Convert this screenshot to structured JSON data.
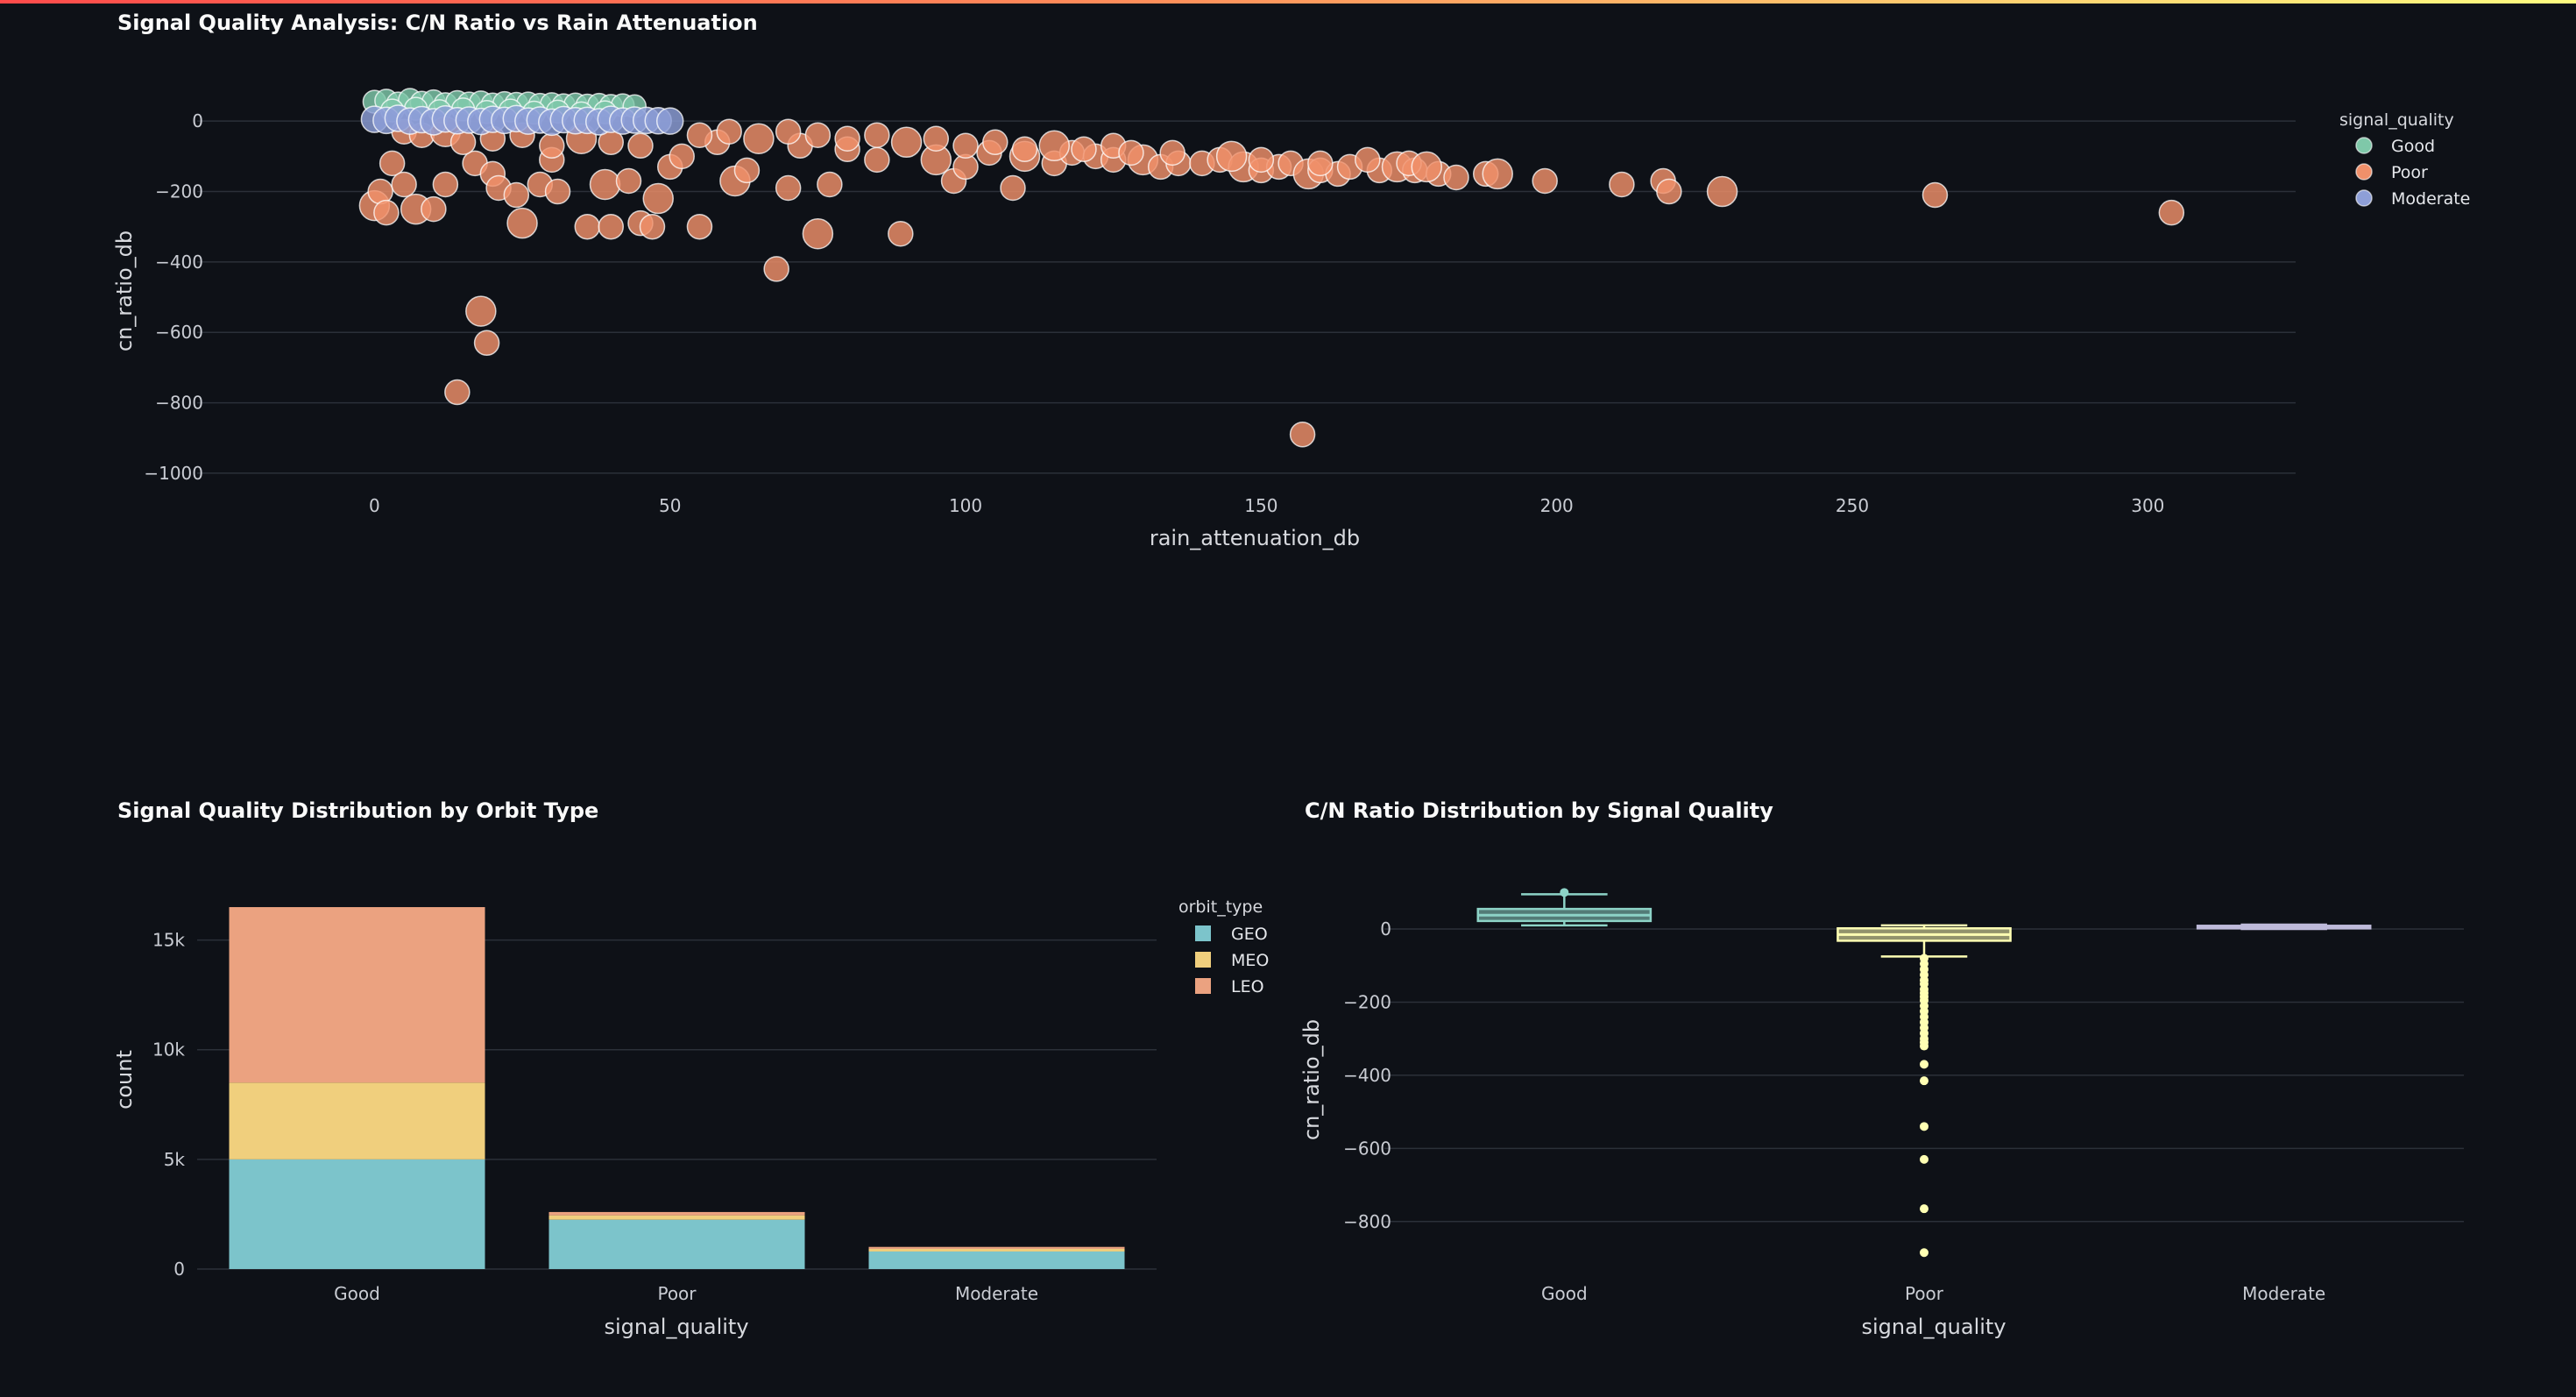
{
  "chart_data": [
    {
      "id": "scatter",
      "type": "scatter",
      "title": "Signal Quality Analysis: C/N Ratio vs Rain Attenuation",
      "xlabel": "rain_attenuation_db",
      "ylabel": "cn_ratio_db",
      "xlim": [
        -30,
        325
      ],
      "ylim": [
        -1050,
        95
      ],
      "xticks": [
        0,
        50,
        100,
        150,
        200,
        250,
        300
      ],
      "yticks": [
        0,
        -200,
        -400,
        -600,
        -800,
        -1000
      ],
      "grid": "horizontal",
      "legend": {
        "title": "signal_quality",
        "placement": "top-right"
      },
      "series": [
        {
          "name": "Good",
          "color": "#7fc8a9",
          "points": [
            [
              0,
              55
            ],
            [
              2,
              58
            ],
            [
              4,
              50
            ],
            [
              6,
              60
            ],
            [
              8,
              52
            ],
            [
              10,
              56
            ],
            [
              12,
              48
            ],
            [
              14,
              54
            ],
            [
              16,
              50
            ],
            [
              18,
              53
            ],
            [
              20,
              47
            ],
            [
              22,
              51
            ],
            [
              24,
              49
            ],
            [
              26,
              50
            ],
            [
              28,
              46
            ],
            [
              30,
              48
            ],
            [
              32,
              45
            ],
            [
              34,
              47
            ],
            [
              36,
              44
            ],
            [
              38,
              46
            ],
            [
              40,
              43
            ],
            [
              42,
              45
            ],
            [
              44,
              42
            ],
            [
              3,
              30
            ],
            [
              7,
              35
            ],
            [
              11,
              28
            ],
            [
              15,
              33
            ],
            [
              19,
              26
            ],
            [
              23,
              30
            ],
            [
              27,
              24
            ],
            [
              31,
              27
            ],
            [
              35,
              22
            ],
            [
              39,
              25
            ]
          ]
        },
        {
          "name": "Poor",
          "color": "#f0906a",
          "points": [
            [
              0,
              -240
            ],
            [
              1,
              -200
            ],
            [
              2,
              -260
            ],
            [
              3,
              -120
            ],
            [
              5,
              -180
            ],
            [
              7,
              -250
            ],
            [
              10,
              -250
            ],
            [
              12,
              -180
            ],
            [
              14,
              -770
            ],
            [
              17,
              -120
            ],
            [
              18,
              -540
            ],
            [
              19,
              -630
            ],
            [
              20,
              -150
            ],
            [
              21,
              -190
            ],
            [
              24,
              -210
            ],
            [
              25,
              -290
            ],
            [
              28,
              -180
            ],
            [
              30,
              -110
            ],
            [
              31,
              -200
            ],
            [
              36,
              -300
            ],
            [
              39,
              -180
            ],
            [
              40,
              -300
            ],
            [
              43,
              -170
            ],
            [
              45,
              -290
            ],
            [
              47,
              -300
            ],
            [
              48,
              -220
            ],
            [
              50,
              -130
            ],
            [
              52,
              -100
            ],
            [
              55,
              -300
            ],
            [
              58,
              -60
            ],
            [
              61,
              -170
            ],
            [
              63,
              -140
            ],
            [
              68,
              -420
            ],
            [
              70,
              -190
            ],
            [
              72,
              -70
            ],
            [
              75,
              -320
            ],
            [
              77,
              -180
            ],
            [
              80,
              -80
            ],
            [
              85,
              -110
            ],
            [
              89,
              -320
            ],
            [
              95,
              -110
            ],
            [
              98,
              -170
            ],
            [
              100,
              -130
            ],
            [
              104,
              -90
            ],
            [
              108,
              -190
            ],
            [
              110,
              -100
            ],
            [
              115,
              -120
            ],
            [
              118,
              -90
            ],
            [
              122,
              -100
            ],
            [
              125,
              -110
            ],
            [
              130,
              -110
            ],
            [
              133,
              -130
            ],
            [
              136,
              -120
            ],
            [
              140,
              -120
            ],
            [
              143,
              -110
            ],
            [
              147,
              -130
            ],
            [
              150,
              -140
            ],
            [
              153,
              -130
            ],
            [
              155,
              -120
            ],
            [
              157,
              -890
            ],
            [
              158,
              -150
            ],
            [
              160,
              -140
            ],
            [
              163,
              -150
            ],
            [
              165,
              -130
            ],
            [
              170,
              -140
            ],
            [
              173,
              -130
            ],
            [
              176,
              -140
            ],
            [
              180,
              -150
            ],
            [
              183,
              -160
            ],
            [
              188,
              -150
            ],
            [
              190,
              -150
            ],
            [
              198,
              -170
            ],
            [
              211,
              -180
            ],
            [
              218,
              -170
            ],
            [
              219,
              -200
            ],
            [
              228,
              -200
            ],
            [
              264,
              -210
            ],
            [
              304,
              -260
            ],
            [
              5,
              -30
            ],
            [
              8,
              -40
            ],
            [
              12,
              -30
            ],
            [
              15,
              -60
            ],
            [
              20,
              -50
            ],
            [
              25,
              -40
            ],
            [
              30,
              -70
            ],
            [
              35,
              -50
            ],
            [
              40,
              -60
            ],
            [
              45,
              -70
            ],
            [
              55,
              -40
            ],
            [
              60,
              -30
            ],
            [
              65,
              -50
            ],
            [
              70,
              -30
            ],
            [
              75,
              -40
            ],
            [
              80,
              -50
            ],
            [
              85,
              -40
            ],
            [
              90,
              -60
            ],
            [
              95,
              -50
            ],
            [
              100,
              -70
            ],
            [
              105,
              -60
            ],
            [
              110,
              -80
            ],
            [
              115,
              -70
            ],
            [
              120,
              -80
            ],
            [
              125,
              -70
            ],
            [
              128,
              -90
            ],
            [
              135,
              -90
            ],
            [
              145,
              -100
            ],
            [
              150,
              -110
            ],
            [
              160,
              -120
            ],
            [
              168,
              -110
            ],
            [
              175,
              -120
            ],
            [
              178,
              -130
            ]
          ]
        },
        {
          "name": "Moderate",
          "color": "#8e9fd8",
          "points": [
            [
              0,
              5
            ],
            [
              2,
              2
            ],
            [
              4,
              8
            ],
            [
              6,
              0
            ],
            [
              8,
              4
            ],
            [
              10,
              -2
            ],
            [
              12,
              6
            ],
            [
              14,
              1
            ],
            [
              16,
              3
            ],
            [
              18,
              -1
            ],
            [
              20,
              5
            ],
            [
              22,
              2
            ],
            [
              24,
              7
            ],
            [
              26,
              0
            ],
            [
              28,
              3
            ],
            [
              30,
              -3
            ],
            [
              32,
              4
            ],
            [
              34,
              1
            ],
            [
              36,
              2
            ],
            [
              38,
              -2
            ],
            [
              40,
              5
            ],
            [
              42,
              0
            ],
            [
              44,
              3
            ],
            [
              46,
              2
            ],
            [
              48,
              1
            ],
            [
              50,
              0
            ]
          ]
        }
      ]
    },
    {
      "id": "bar",
      "type": "bar",
      "stacked": true,
      "title": "Signal Quality Distribution by Orbit Type",
      "xlabel": "signal_quality",
      "ylabel": "count",
      "categories": [
        "Good",
        "Poor",
        "Moderate"
      ],
      "ylim": [
        0,
        17500
      ],
      "yticks": [
        0,
        5000,
        10000,
        15000
      ],
      "ytick_labels": [
        "0",
        "5k",
        "10k",
        "15k"
      ],
      "legend": {
        "title": "orbit_type",
        "placement": "right"
      },
      "series": [
        {
          "name": "GEO",
          "color": "#7cc4cb",
          "values": [
            5000,
            2250,
            800
          ]
        },
        {
          "name": "MEO",
          "color": "#f0cf7d",
          "values": [
            3500,
            200,
            120
          ]
        },
        {
          "name": "LEO",
          "color": "#eba280",
          "values": [
            8000,
            150,
            90
          ]
        }
      ]
    },
    {
      "id": "box",
      "type": "box",
      "title": "C/N Ratio Distribution by Signal Quality",
      "xlabel": "signal_quality",
      "ylabel": "cn_ratio_db",
      "categories": [
        "Good",
        "Poor",
        "Moderate"
      ],
      "ylim": [
        -930,
        120
      ],
      "yticks": [
        0,
        -200,
        -400,
        -600,
        -800
      ],
      "grid": "horizontal",
      "boxes": [
        {
          "name": "Good",
          "color": "#8dd3c7",
          "min": 10,
          "q1": 22,
          "median": 38,
          "q3": 55,
          "max": 95,
          "outliers": [
            100
          ]
        },
        {
          "name": "Poor",
          "color": "#ffffb3",
          "min": -75,
          "q1": -32,
          "median": -15,
          "q3": 2,
          "max": 10,
          "outliers": [
            -80,
            -95,
            -110,
            -125,
            -140,
            -150,
            -165,
            -175,
            -185,
            -195,
            -210,
            -225,
            -240,
            -255,
            -270,
            -285,
            -300,
            -310,
            -320,
            -370,
            -415,
            -540,
            -630,
            -765,
            -885
          ]
        },
        {
          "name": "Moderate",
          "color": "#bebada",
          "min": 0,
          "q1": 3,
          "median": 6,
          "q3": 9,
          "max": 12,
          "outliers": []
        }
      ]
    }
  ]
}
